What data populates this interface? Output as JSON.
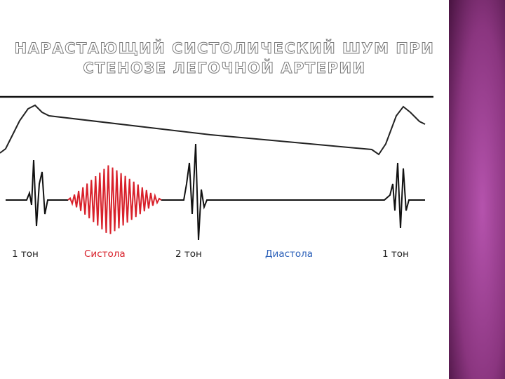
{
  "title": [
    "НАРАСТАЮЩИЙ СИСТОЛИЧЕСКИЙ ШУМ ПРИ",
    "СТЕНОЗЕ ЛЕГОЧНОЙ АРТЕРИИ"
  ],
  "labels": [
    "1 тон",
    "Систола",
    "2 тон",
    "Диастола",
    "1 тон"
  ]
}
